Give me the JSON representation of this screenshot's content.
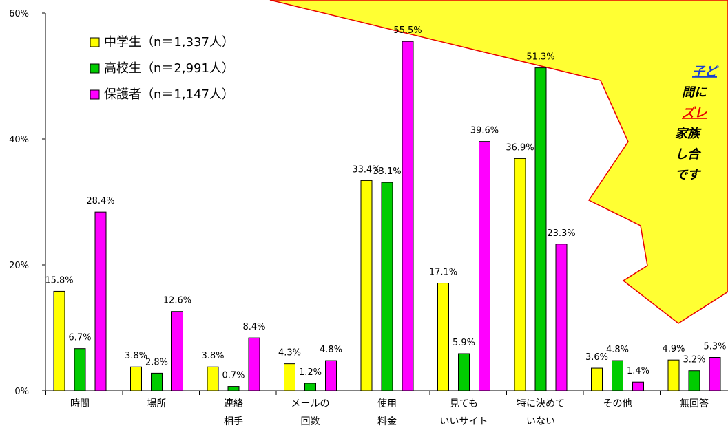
{
  "chart_data": {
    "type": "bar",
    "yticks": [
      "0%",
      "20%",
      "40%",
      "60%"
    ],
    "ylim": [
      0,
      60
    ],
    "grid": false,
    "legend_position": "top-left",
    "categories": [
      {
        "lines": [
          "時間"
        ],
        "highlight": false
      },
      {
        "lines": [
          "場所"
        ],
        "highlight": false
      },
      {
        "lines": [
          "連絡",
          "相手"
        ],
        "highlight": false
      },
      {
        "lines": [
          "メールの",
          "回数"
        ],
        "highlight": false
      },
      {
        "lines": [
          "使用",
          "料金"
        ],
        "highlight": false
      },
      {
        "lines": [
          "見ても",
          "いいサイト"
        ],
        "highlight": false
      },
      {
        "lines": [
          "特に決めて",
          "いない"
        ],
        "highlight": true
      },
      {
        "lines": [
          "その他"
        ],
        "highlight": false
      },
      {
        "lines": [
          "無回答"
        ],
        "highlight": false
      }
    ],
    "series": [
      {
        "name": "中学生（n＝1,337人）",
        "color": "#ffff00",
        "values": [
          15.8,
          3.8,
          3.8,
          4.3,
          33.4,
          17.1,
          36.9,
          3.6,
          4.9
        ],
        "labels": [
          "15.8%",
          "3.8%",
          "3.8%",
          "4.3%",
          "33.4%",
          "17.1%",
          "36.9%",
          "3.6%",
          "4.9%"
        ]
      },
      {
        "name": "高校生（n＝2,991人）",
        "color": "#00cc00",
        "values": [
          6.7,
          2.8,
          0.7,
          1.2,
          33.1,
          5.9,
          51.3,
          4.8,
          3.2
        ],
        "labels": [
          "6.7%",
          "2.8%",
          "0.7%",
          "1.2%",
          "33.1%",
          "5.9%",
          "51.3%",
          "4.8%",
          "3.2%"
        ]
      },
      {
        "name": "保護者（n＝1,147人）",
        "color": "#ff00ff",
        "values": [
          28.4,
          12.6,
          8.4,
          4.8,
          55.5,
          39.6,
          23.3,
          1.4,
          5.3
        ],
        "labels": [
          "28.4%",
          "12.6%",
          "8.4%",
          "4.8%",
          "55.5%",
          "39.6%",
          "23.3%",
          "1.4%",
          "5.3%"
        ]
      }
    ],
    "highlight_color": "#e60000",
    "callout": {
      "fill": "#ffff33",
      "stroke": "#e60000",
      "lines": [
        {
          "text": "子ど",
          "style": "blue-underline"
        },
        {
          "text": "間に",
          "style": "plain"
        },
        {
          "text": "ズレ",
          "style": "red-underline"
        },
        {
          "text": "家族",
          "style": "plain"
        },
        {
          "text": "し合",
          "style": "plain"
        },
        {
          "text": "です",
          "style": "plain"
        }
      ]
    }
  }
}
